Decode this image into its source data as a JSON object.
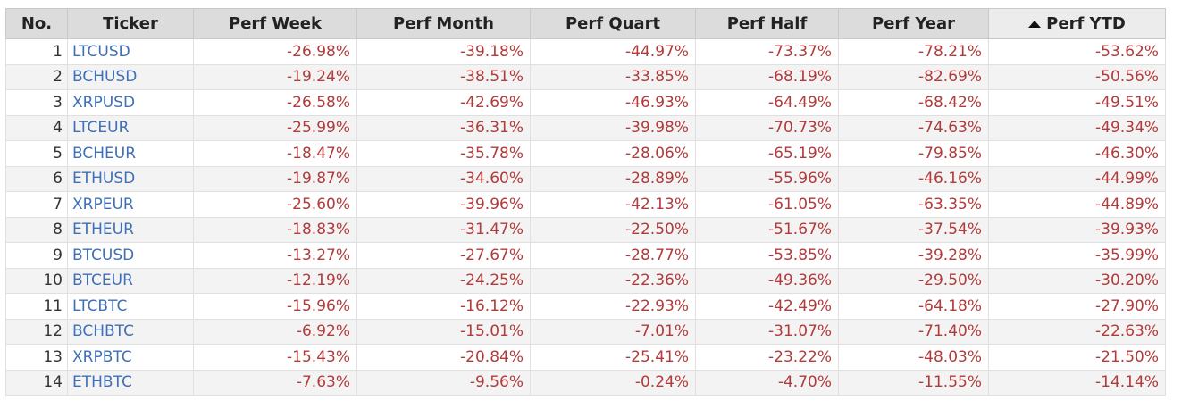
{
  "table": {
    "headers": {
      "no": "No.",
      "ticker": "Ticker",
      "perf_week": "Perf Week",
      "perf_month": "Perf Month",
      "perf_quart": "Perf Quart",
      "perf_half": "Perf Half",
      "perf_year": "Perf Year",
      "perf_ytd": "Perf YTD"
    },
    "sort": {
      "column": "perf_ytd",
      "direction": "ascending",
      "icon": "sort-ascending-icon"
    },
    "colors": {
      "ticker_link": "#3f6fb5",
      "negative_value": "#b13a3a",
      "header_bg": "#dcdcdc",
      "row_alt_bg": "#f3f3f3"
    },
    "rows": [
      {
        "no": "1",
        "ticker": "LTCUSD",
        "perf_week": "-26.98%",
        "perf_month": "-39.18%",
        "perf_quart": "-44.97%",
        "perf_half": "-73.37%",
        "perf_year": "-78.21%",
        "perf_ytd": "-53.62%"
      },
      {
        "no": "2",
        "ticker": "BCHUSD",
        "perf_week": "-19.24%",
        "perf_month": "-38.51%",
        "perf_quart": "-33.85%",
        "perf_half": "-68.19%",
        "perf_year": "-82.69%",
        "perf_ytd": "-50.56%"
      },
      {
        "no": "3",
        "ticker": "XRPUSD",
        "perf_week": "-26.58%",
        "perf_month": "-42.69%",
        "perf_quart": "-46.93%",
        "perf_half": "-64.49%",
        "perf_year": "-68.42%",
        "perf_ytd": "-49.51%"
      },
      {
        "no": "4",
        "ticker": "LTCEUR",
        "perf_week": "-25.99%",
        "perf_month": "-36.31%",
        "perf_quart": "-39.98%",
        "perf_half": "-70.73%",
        "perf_year": "-74.63%",
        "perf_ytd": "-49.34%"
      },
      {
        "no": "5",
        "ticker": "BCHEUR",
        "perf_week": "-18.47%",
        "perf_month": "-35.78%",
        "perf_quart": "-28.06%",
        "perf_half": "-65.19%",
        "perf_year": "-79.85%",
        "perf_ytd": "-46.30%"
      },
      {
        "no": "6",
        "ticker": "ETHUSD",
        "perf_week": "-19.87%",
        "perf_month": "-34.60%",
        "perf_quart": "-28.89%",
        "perf_half": "-55.96%",
        "perf_year": "-46.16%",
        "perf_ytd": "-44.99%"
      },
      {
        "no": "7",
        "ticker": "XRPEUR",
        "perf_week": "-25.60%",
        "perf_month": "-39.96%",
        "perf_quart": "-42.13%",
        "perf_half": "-61.05%",
        "perf_year": "-63.35%",
        "perf_ytd": "-44.89%"
      },
      {
        "no": "8",
        "ticker": "ETHEUR",
        "perf_week": "-18.83%",
        "perf_month": "-31.47%",
        "perf_quart": "-22.50%",
        "perf_half": "-51.67%",
        "perf_year": "-37.54%",
        "perf_ytd": "-39.93%"
      },
      {
        "no": "9",
        "ticker": "BTCUSD",
        "perf_week": "-13.27%",
        "perf_month": "-27.67%",
        "perf_quart": "-28.77%",
        "perf_half": "-53.85%",
        "perf_year": "-39.28%",
        "perf_ytd": "-35.99%"
      },
      {
        "no": "10",
        "ticker": "BTCEUR",
        "perf_week": "-12.19%",
        "perf_month": "-24.25%",
        "perf_quart": "-22.36%",
        "perf_half": "-49.36%",
        "perf_year": "-29.50%",
        "perf_ytd": "-30.20%"
      },
      {
        "no": "11",
        "ticker": "LTCBTC",
        "perf_week": "-15.96%",
        "perf_month": "-16.12%",
        "perf_quart": "-22.93%",
        "perf_half": "-42.49%",
        "perf_year": "-64.18%",
        "perf_ytd": "-27.90%"
      },
      {
        "no": "12",
        "ticker": "BCHBTC",
        "perf_week": "-6.92%",
        "perf_month": "-15.01%",
        "perf_quart": "-7.01%",
        "perf_half": "-31.07%",
        "perf_year": "-71.40%",
        "perf_ytd": "-22.63%"
      },
      {
        "no": "13",
        "ticker": "XRPBTC",
        "perf_week": "-15.43%",
        "perf_month": "-20.84%",
        "perf_quart": "-25.41%",
        "perf_half": "-23.22%",
        "perf_year": "-48.03%",
        "perf_ytd": "-21.50%"
      },
      {
        "no": "14",
        "ticker": "ETHBTC",
        "perf_week": "-7.63%",
        "perf_month": "-9.56%",
        "perf_quart": "-0.24%",
        "perf_half": "-4.70%",
        "perf_year": "-11.55%",
        "perf_ytd": "-14.14%"
      }
    ]
  }
}
